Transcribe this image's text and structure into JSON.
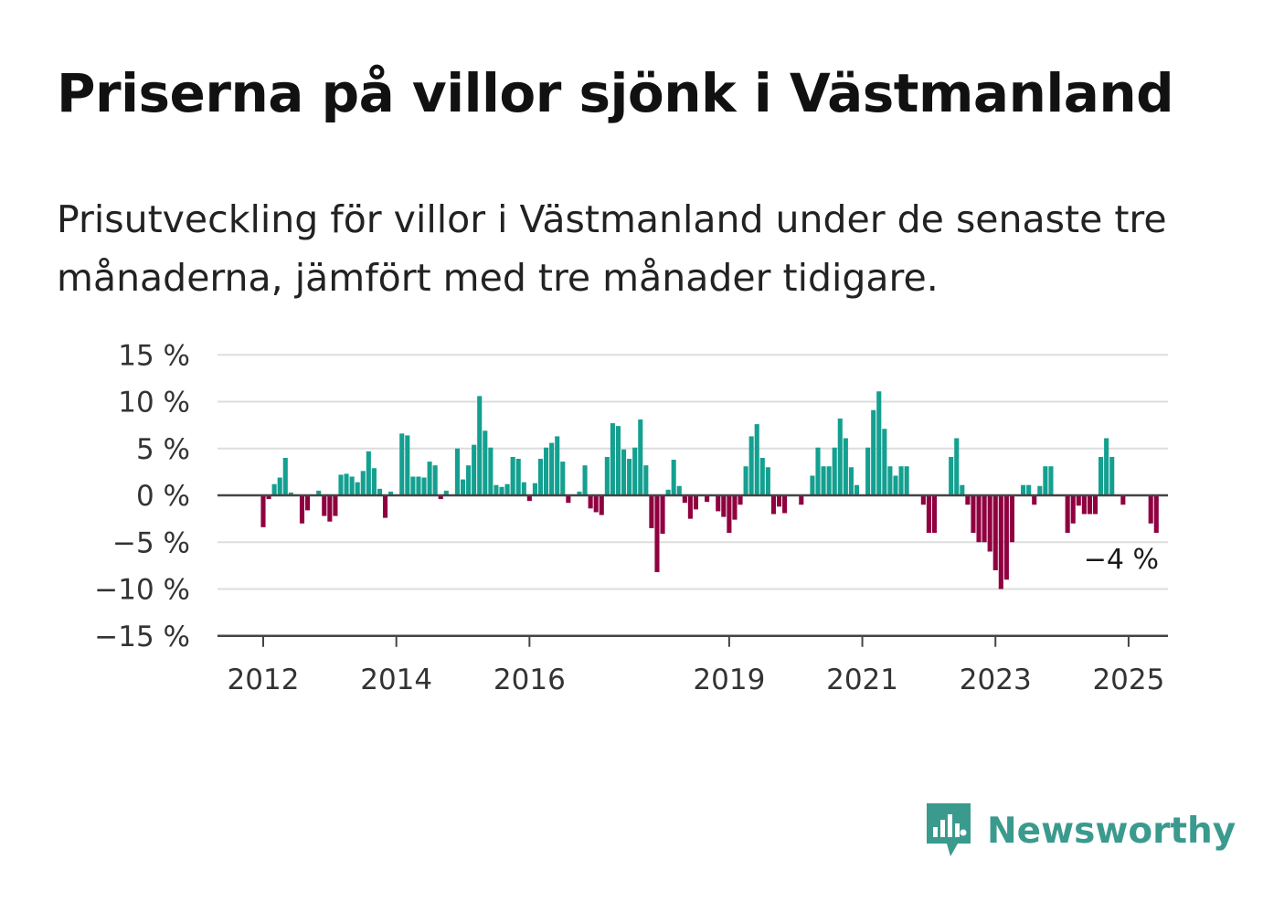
{
  "title": "Priserna på villor sjönk i Västmanland",
  "subtitle": "Prisutveckling för villor i Västmanland under de senaste tre månaderna, jämfört med tre månader tidigare.",
  "brand": {
    "name": "Newsworthy",
    "icon": "newsworthy-logo-icon",
    "color": "#3a9a8d"
  },
  "colors": {
    "positive": "#14a090",
    "negative": "#900040",
    "grid": "#dddddd",
    "axis": "#444444"
  },
  "chart_data": {
    "type": "bar",
    "start_month": "2011-11",
    "ylim": [
      -15,
      15
    ],
    "yticks": [
      15,
      10,
      5,
      0,
      -5,
      -10,
      -15
    ],
    "ytick_labels": [
      "15 %",
      "10 %",
      "5 %",
      "0 %",
      "−5 %",
      "−10 %",
      "−15 %"
    ],
    "xticks": [
      {
        "label": "2012",
        "month": "2012-01"
      },
      {
        "label": "2014",
        "month": "2014-01"
      },
      {
        "label": "2016",
        "month": "2016-01"
      },
      {
        "label": "2019",
        "month": "2019-01"
      },
      {
        "label": "2021",
        "month": "2021-01"
      },
      {
        "label": "2023",
        "month": "2023-01"
      },
      {
        "label": "2025",
        "month": "2025-01"
      }
    ],
    "last_value_label": "−4 %",
    "values": [
      0,
      0,
      -3.4,
      -0.4,
      1.2,
      1.9,
      4,
      0.3,
      0.1,
      -3,
      -1.6,
      0,
      0.5,
      -2.2,
      -2.8,
      -2.2,
      2.2,
      2.3,
      2,
      1.4,
      2.6,
      4.7,
      2.9,
      0.7,
      -2.4,
      0.4,
      0,
      6.6,
      6.4,
      2,
      2,
      1.9,
      3.6,
      3.2,
      -0.4,
      0.5,
      0,
      5,
      1.7,
      3.2,
      5.4,
      10.6,
      6.9,
      5.1,
      1.1,
      0.9,
      1.2,
      4.1,
      3.9,
      1.4,
      -0.6,
      1.3,
      3.9,
      5.1,
      5.6,
      6.3,
      3.6,
      -0.8,
      0,
      0.4,
      3.2,
      -1.4,
      -1.8,
      -2.1,
      4.1,
      7.7,
      7.4,
      4.9,
      3.9,
      5.1,
      8.1,
      3.2,
      -3.5,
      -8.2,
      -4.1,
      0.6,
      3.8,
      1,
      -0.8,
      -2.5,
      -1.5,
      0,
      -0.7,
      0,
      -1.7,
      -2.3,
      -4,
      -2.6,
      -1,
      3.1,
      6.3,
      7.6,
      4,
      3,
      -2,
      -1.2,
      -1.9,
      0,
      0,
      -1,
      0,
      2.1,
      5.1,
      3.1,
      3.1,
      5.1,
      8.2,
      6.1,
      3,
      1.1,
      0,
      5.1,
      9.1,
      11.1,
      7.1,
      3.1,
      2.1,
      3.1,
      3.1,
      0,
      0,
      -1,
      -4,
      -4,
      0,
      0,
      4.1,
      6.1,
      1.1,
      -1,
      -4,
      -5,
      -5,
      -6,
      -8,
      -10,
      -9,
      -5,
      0,
      1.1,
      1.1,
      -1,
      1,
      3.1,
      3.1,
      0,
      0,
      -4,
      -3,
      -1.1,
      -2,
      -2,
      -2,
      4.1,
      6.1,
      4.1,
      0,
      -1,
      0,
      0,
      0,
      0,
      -3,
      -4
    ]
  }
}
